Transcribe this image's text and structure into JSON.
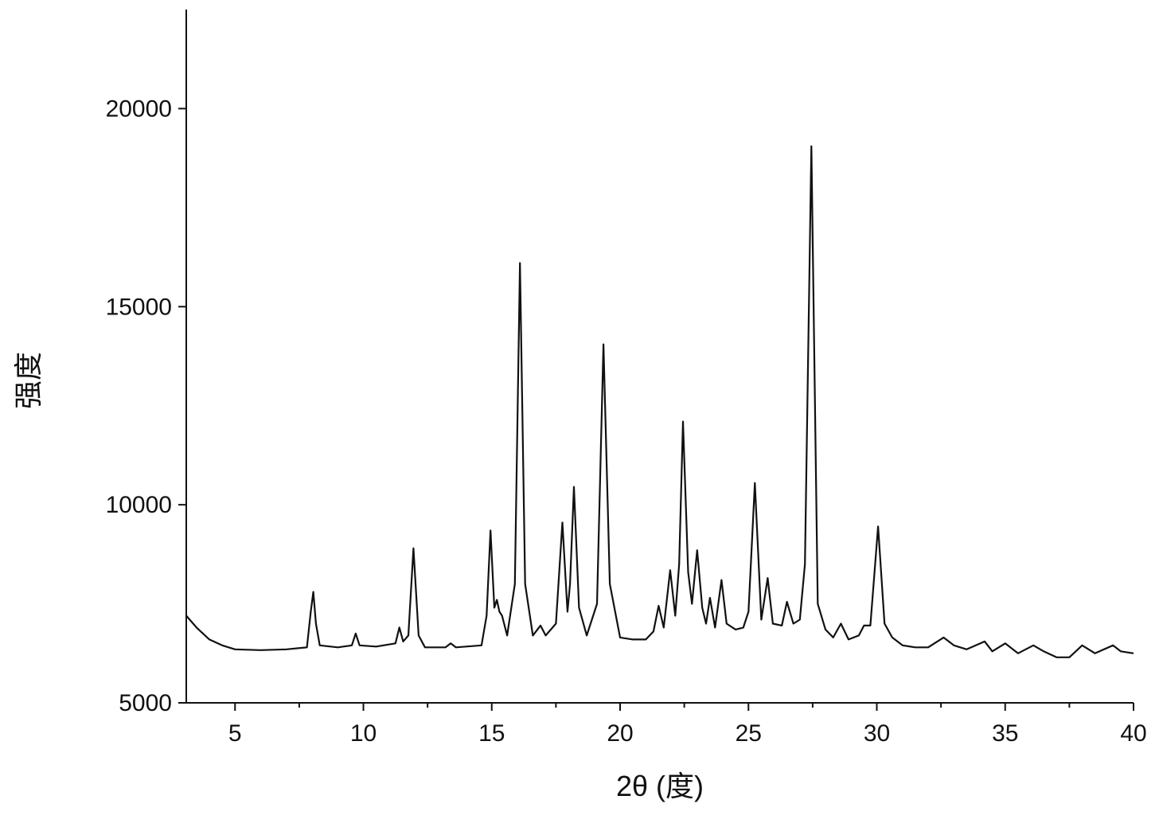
{
  "chart_data": {
    "type": "line",
    "x_label": "2θ (度)",
    "y_label": "强度",
    "xlim": [
      3.1,
      40
    ],
    "ylim": [
      5000,
      22500
    ],
    "xticks": [
      5,
      10,
      15,
      20,
      25,
      30,
      35,
      40
    ],
    "yticks": [
      5000,
      10000,
      15000,
      20000
    ],
    "grid": false,
    "x": [
      3.1,
      3.5,
      4,
      4.5,
      5,
      6,
      7,
      7.8,
      7.95,
      8.05,
      8.15,
      8.3,
      9,
      9.55,
      9.7,
      9.85,
      10.5,
      11.25,
      11.4,
      11.55,
      11.75,
      11.95,
      12.15,
      12.4,
      13.2,
      13.4,
      13.6,
      14.6,
      14.8,
      14.95,
      15.1,
      15.2,
      15.3,
      15.4,
      15.6,
      15.9,
      16.1,
      16.3,
      16.6,
      16.9,
      17.1,
      17.5,
      17.75,
      17.95,
      18.05,
      18.2,
      18.4,
      18.7,
      19.1,
      19.35,
      19.6,
      20,
      20.5,
      21,
      21.3,
      21.5,
      21.7,
      21.95,
      22.15,
      22.3,
      22.45,
      22.65,
      22.8,
      23.0,
      23.2,
      23.35,
      23.5,
      23.7,
      23.95,
      24.15,
      24.5,
      24.8,
      25.0,
      25.25,
      25.5,
      25.75,
      25.95,
      26.3,
      26.5,
      26.75,
      27.0,
      27.2,
      27.45,
      27.7,
      28.0,
      28.3,
      28.6,
      28.9,
      29.3,
      29.5,
      29.75,
      30.05,
      30.3,
      30.6,
      31,
      31.5,
      32,
      32.6,
      33,
      33.5,
      34.2,
      34.5,
      35,
      35.5,
      36.1,
      36.5,
      37,
      37.5,
      38,
      38.5,
      39.2,
      39.5,
      40
    ],
    "series": [
      {
        "color": "#111111",
        "values": [
          7200,
          6900,
          6600,
          6450,
          6350,
          6330,
          6350,
          6400,
          7300,
          7800,
          7000,
          6450,
          6400,
          6450,
          6750,
          6450,
          6420,
          6500,
          6900,
          6550,
          6700,
          8900,
          6700,
          6400,
          6400,
          6500,
          6400,
          6450,
          7200,
          9350,
          7400,
          7600,
          7300,
          7200,
          6700,
          8000,
          16100,
          8000,
          6700,
          6950,
          6700,
          7000,
          9550,
          7300,
          8000,
          10450,
          7400,
          6700,
          7500,
          14050,
          8000,
          6650,
          6600,
          6600,
          6800,
          7450,
          6900,
          8350,
          7200,
          8500,
          12100,
          8300,
          7500,
          8850,
          7400,
          7000,
          7650,
          6900,
          8100,
          7000,
          6850,
          6900,
          7300,
          10550,
          7100,
          8150,
          7000,
          6950,
          7550,
          7000,
          7100,
          8500,
          19050,
          7500,
          6850,
          6650,
          7000,
          6600,
          6700,
          6950,
          6950,
          9450,
          7000,
          6650,
          6450,
          6400,
          6400,
          6650,
          6450,
          6350,
          6550,
          6300,
          6500,
          6250,
          6450,
          6300,
          6150,
          6150,
          6450,
          6250,
          6450,
          6300,
          6250
        ]
      }
    ]
  }
}
